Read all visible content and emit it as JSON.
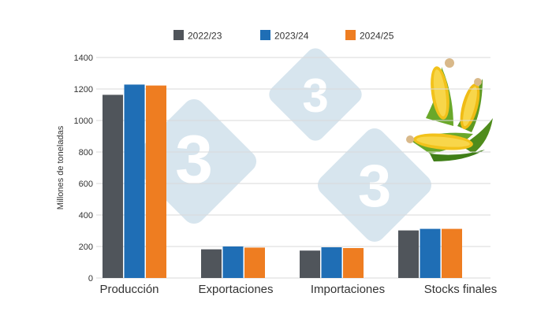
{
  "chart_data": {
    "type": "bar",
    "title": "",
    "xlabel": "",
    "ylabel": "Millones de toneladas",
    "ylim": [
      0,
      1400
    ],
    "yticks": [
      0,
      200,
      400,
      600,
      800,
      1000,
      1200,
      1400
    ],
    "grid": true,
    "legend_position": "top-center",
    "categories": [
      "Producción",
      "Exportaciones",
      "Importaciones",
      "Stocks finales"
    ],
    "series": [
      {
        "name": "2022/23",
        "color": "#50555b",
        "values": [
          1163,
          182,
          174,
          302
        ]
      },
      {
        "name": "2023/24",
        "color": "#1f6eb5",
        "values": [
          1228,
          200,
          195,
          312
        ]
      },
      {
        "name": "2024/25",
        "color": "#ee7d21",
        "values": [
          1222,
          193,
          190,
          312
        ]
      }
    ]
  },
  "watermark": {
    "logo_text": "3"
  },
  "decoration": {
    "image_icon": "corn-cobs-icon"
  }
}
